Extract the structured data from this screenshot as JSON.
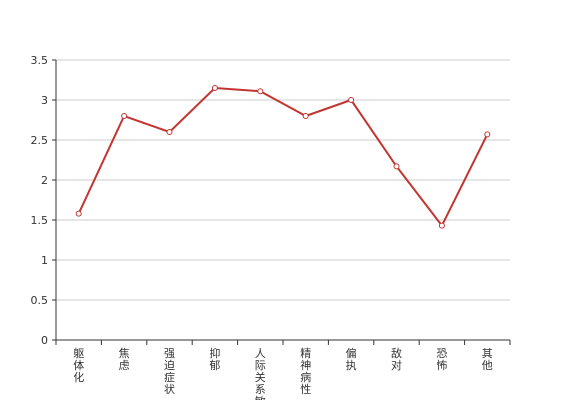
{
  "chart_data": {
    "type": "line",
    "categories": [
      "躯体化",
      "焦虑",
      "强迫症状",
      "抑郁",
      "人际关系敏感",
      "精神病性",
      "偏执",
      "敌对",
      "恐怖",
      "其他"
    ],
    "series": [
      {
        "values": [
          1.58,
          2.8,
          2.6,
          3.15,
          3.11,
          2.8,
          3.0,
          2.17,
          1.43,
          2.57
        ]
      }
    ],
    "yticks": [
      "0",
      "0.5",
      "1",
      "1.5",
      "2",
      "2.5",
      "3",
      "3.5"
    ],
    "ylim": [
      0,
      3.5
    ],
    "grid": true,
    "line_color": "#c23531",
    "grid_color": "#cccccc",
    "axis_color": "#333333"
  }
}
